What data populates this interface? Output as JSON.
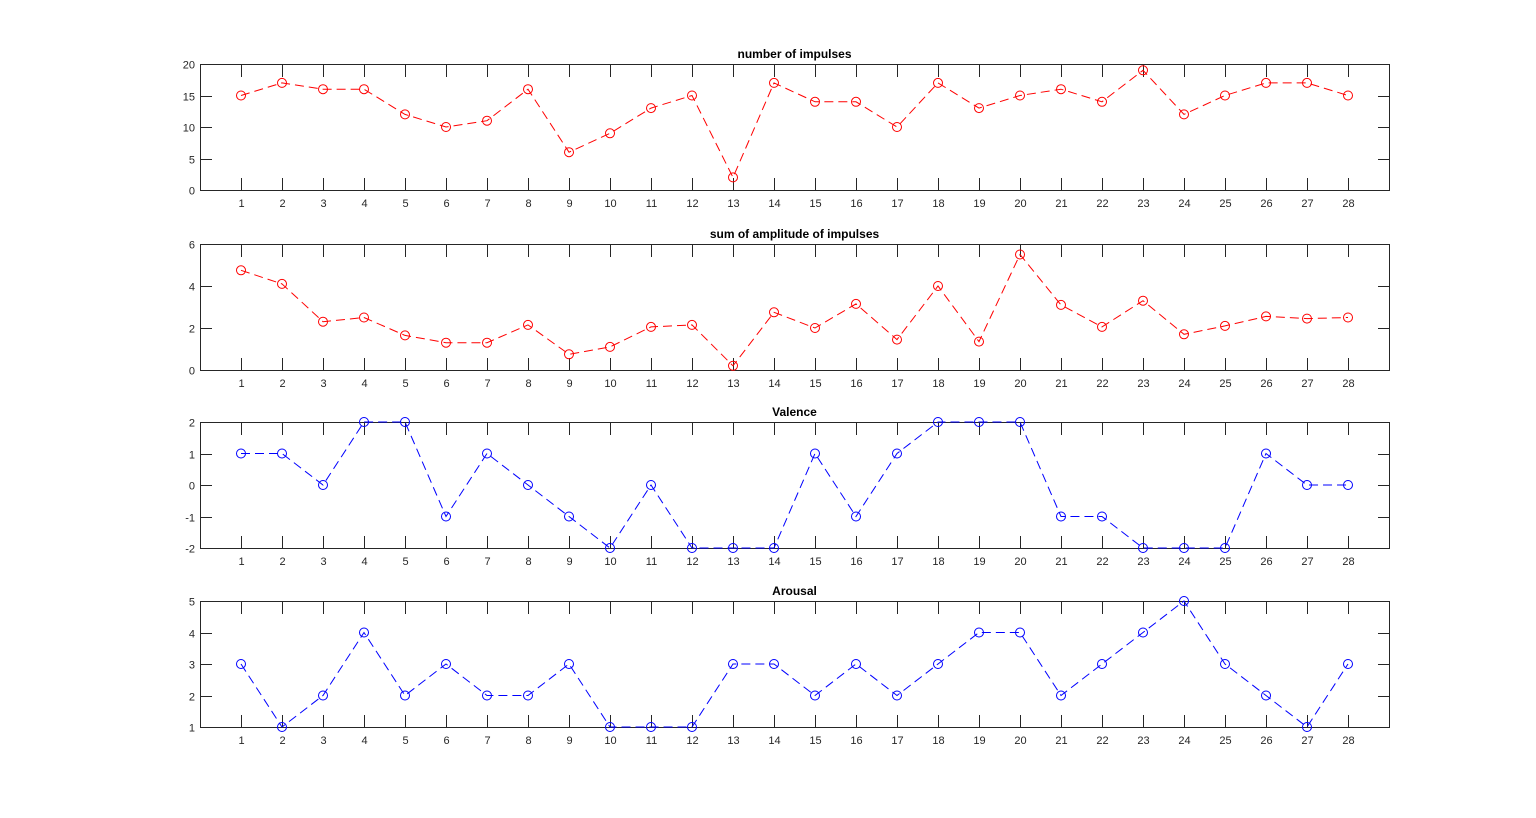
{
  "figure": {
    "background": "#ffffff"
  },
  "chart_data": [
    {
      "type": "line",
      "title": "number of impulses",
      "xlabel": "",
      "ylabel": "",
      "color": "#ff0000",
      "line_style": "dashed",
      "marker": "circle",
      "grid": false,
      "xlim": [
        0,
        29
      ],
      "ylim": [
        0,
        20
      ],
      "xticks": [
        1,
        2,
        3,
        4,
        5,
        6,
        7,
        8,
        9,
        10,
        11,
        12,
        13,
        14,
        15,
        16,
        17,
        18,
        19,
        20,
        21,
        22,
        23,
        24,
        25,
        26,
        27,
        28
      ],
      "yticks": [
        0,
        5,
        10,
        15,
        20
      ],
      "x": [
        1,
        2,
        3,
        4,
        5,
        6,
        7,
        8,
        9,
        10,
        11,
        12,
        13,
        14,
        15,
        16,
        17,
        18,
        19,
        20,
        21,
        22,
        23,
        24,
        25,
        26,
        27,
        28
      ],
      "series": [
        {
          "values": [
            15,
            17,
            16,
            16,
            12,
            10,
            11,
            16,
            6,
            9,
            13,
            15,
            2,
            17,
            14,
            14,
            10,
            17,
            13,
            15,
            16,
            14,
            19,
            12,
            15,
            17,
            17,
            15
          ]
        }
      ]
    },
    {
      "type": "line",
      "title": "sum of amplitude of impulses",
      "xlabel": "",
      "ylabel": "",
      "color": "#ff0000",
      "line_style": "dashed",
      "marker": "circle",
      "grid": false,
      "xlim": [
        0,
        29
      ],
      "ylim": [
        0,
        6
      ],
      "xticks": [
        1,
        2,
        3,
        4,
        5,
        6,
        7,
        8,
        9,
        10,
        11,
        12,
        13,
        14,
        15,
        16,
        17,
        18,
        19,
        20,
        21,
        22,
        23,
        24,
        25,
        26,
        27,
        28
      ],
      "yticks": [
        0,
        2,
        4,
        6
      ],
      "x": [
        1,
        2,
        3,
        4,
        5,
        6,
        7,
        8,
        9,
        10,
        11,
        12,
        13,
        14,
        15,
        16,
        17,
        18,
        19,
        20,
        21,
        22,
        23,
        24,
        25,
        26,
        27,
        28
      ],
      "series": [
        {
          "values": [
            4.75,
            4.1,
            2.3,
            2.5,
            1.65,
            1.3,
            1.3,
            2.15,
            0.75,
            1.1,
            2.05,
            2.15,
            0.2,
            2.75,
            2.0,
            3.15,
            1.45,
            4.0,
            1.35,
            5.5,
            3.1,
            2.05,
            3.3,
            1.7,
            2.1,
            2.55,
            2.45,
            2.5
          ]
        }
      ]
    },
    {
      "type": "line",
      "title": "Valence",
      "xlabel": "",
      "ylabel": "",
      "color": "#0000ff",
      "line_style": "dashed",
      "marker": "circle",
      "grid": false,
      "xlim": [
        0,
        29
      ],
      "ylim": [
        -2,
        2
      ],
      "xticks": [
        1,
        2,
        3,
        4,
        5,
        6,
        7,
        8,
        9,
        10,
        11,
        12,
        13,
        14,
        15,
        16,
        17,
        18,
        19,
        20,
        21,
        22,
        23,
        24,
        25,
        26,
        27,
        28
      ],
      "yticks": [
        -2,
        -1,
        0,
        1,
        2
      ],
      "x": [
        1,
        2,
        3,
        4,
        5,
        6,
        7,
        8,
        9,
        10,
        11,
        12,
        13,
        14,
        15,
        16,
        17,
        18,
        19,
        20,
        21,
        22,
        23,
        24,
        25,
        26,
        27,
        28
      ],
      "series": [
        {
          "values": [
            1,
            1,
            0,
            2,
            2,
            -1,
            1,
            0,
            -1,
            -2,
            0,
            -2,
            -2,
            -2,
            1,
            -1,
            1,
            2,
            2,
            2,
            -1,
            -1,
            -2,
            -2,
            -2,
            1,
            0,
            0
          ]
        }
      ]
    },
    {
      "type": "line",
      "title": "Arousal",
      "xlabel": "",
      "ylabel": "",
      "color": "#0000ff",
      "line_style": "dashed",
      "marker": "circle",
      "grid": false,
      "xlim": [
        0,
        29
      ],
      "ylim": [
        1,
        5
      ],
      "xticks": [
        1,
        2,
        3,
        4,
        5,
        6,
        7,
        8,
        9,
        10,
        11,
        12,
        13,
        14,
        15,
        16,
        17,
        18,
        19,
        20,
        21,
        22,
        23,
        24,
        25,
        26,
        27,
        28
      ],
      "yticks": [
        1,
        2,
        3,
        4,
        5
      ],
      "x": [
        1,
        2,
        3,
        4,
        5,
        6,
        7,
        8,
        9,
        10,
        11,
        12,
        13,
        14,
        15,
        16,
        17,
        18,
        19,
        20,
        21,
        22,
        23,
        24,
        25,
        26,
        27,
        28
      ],
      "series": [
        {
          "values": [
            3,
            1,
            2,
            4,
            2,
            3,
            2,
            2,
            3,
            1,
            1,
            1,
            3,
            3,
            2,
            3,
            2,
            3,
            4,
            4,
            2,
            3,
            4,
            5,
            3,
            2,
            1,
            3
          ]
        }
      ]
    }
  ]
}
